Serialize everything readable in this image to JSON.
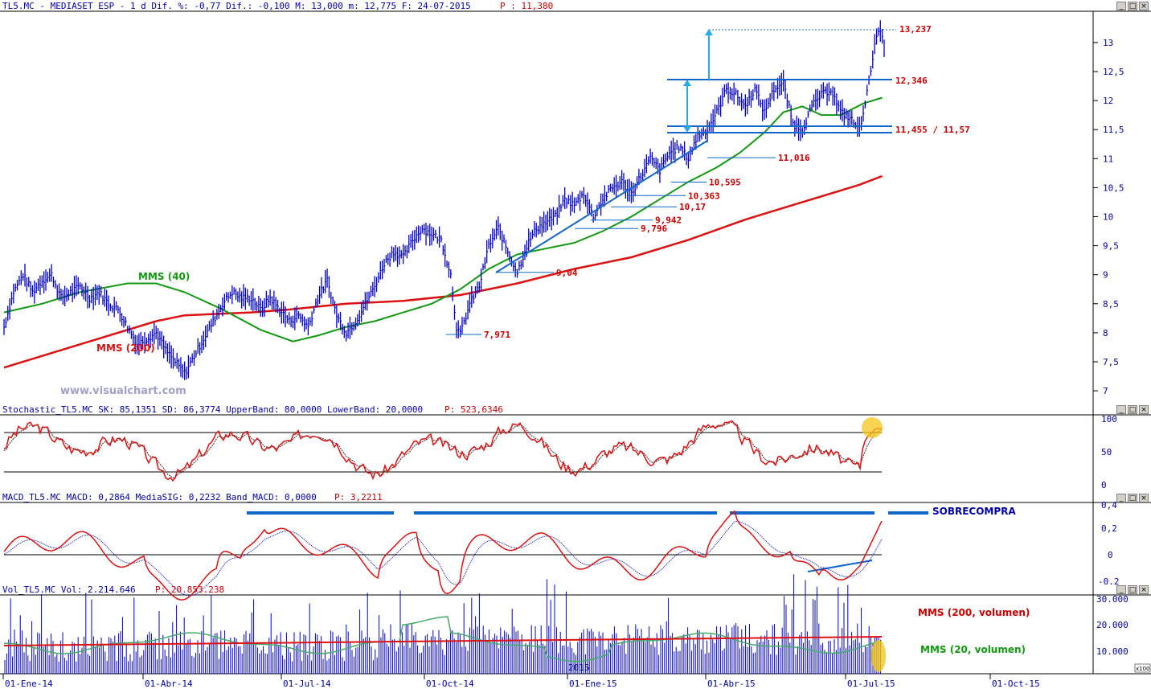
{
  "colors": {
    "price": "#0000cc",
    "ma40": "#119911",
    "ma200": "#dd1111",
    "text_blue": "#0000aa",
    "text_red": "#cc0000",
    "axis_blue": "#0000aa",
    "trend": "#1166cc"
  },
  "header": {
    "title": "TL5.MC - MEDIASET ESP -  1 d Dif. %: -0,77 Dif.: -0,100 M: 13,000 m: 12,775 F: 24-07-2015 ",
    "price_label": "P : 11,380"
  },
  "panels": {
    "stochastic": {
      "title": "Stochastic_TL5.MC SK: 85,1351 SD: 86,3774 UpperBand: 80,0000 LowerBand: 20,0000 ",
      "price_label": "P: 523,6346",
      "y_ticks": [
        "100",
        "50",
        "0"
      ],
      "upper_band": 80,
      "lower_band": 20
    },
    "macd": {
      "title": "MACD_TL5.MC MACD: 0,2864 MediaSIG: 0,2232 Band_MACD: 0,0000 ",
      "price_label": "P: 3,2211",
      "y_ticks": [
        "0,4",
        "0,2",
        "0",
        "-0.2"
      ],
      "annotation": "SOBRECOMPRA"
    },
    "volume": {
      "title": "Vol_TL5.MC Vol: 2.214.646 ",
      "price_label": "P: 20.853.238",
      "y_ticks": [
        "30.000",
        "20.000",
        "10.000"
      ],
      "unit": "x100",
      "ma200_label": "MMS (200, volumen)",
      "ma20_label": "MMS (20, volumen)",
      "year_label": "2015"
    }
  },
  "watermark": "www.visualchart.com",
  "chart_data": {
    "type": "line",
    "x_ticks": [
      "01-Ene-14",
      "01-Abr-14",
      "01-Jul-14",
      "01-Oct-14",
      "01-Ene-15",
      "01-Abr-15",
      "01-Jul-15",
      "01-Oct-15"
    ],
    "y_ticks": [
      "13",
      "12,5",
      "12",
      "11,5",
      "11",
      "10,5",
      "10",
      "9,5",
      "9",
      "8,5",
      "8",
      "7,5",
      "7"
    ],
    "ylim": [
      6.8,
      13.5
    ],
    "series": [
      {
        "name": "MMS (40)",
        "points": [
          [
            0,
            8.35
          ],
          [
            20,
            8.5
          ],
          [
            40,
            8.7
          ],
          [
            65,
            8.85
          ],
          [
            80,
            8.85
          ],
          [
            95,
            8.7
          ],
          [
            115,
            8.4
          ],
          [
            135,
            8.05
          ],
          [
            152,
            7.85
          ],
          [
            165,
            7.95
          ],
          [
            180,
            8.1
          ],
          [
            195,
            8.2
          ],
          [
            210,
            8.35
          ],
          [
            225,
            8.5
          ],
          [
            240,
            8.75
          ],
          [
            255,
            9.1
          ],
          [
            270,
            9.35
          ],
          [
            285,
            9.45
          ],
          [
            300,
            9.55
          ],
          [
            315,
            9.75
          ],
          [
            330,
            10.0
          ],
          [
            345,
            10.3
          ],
          [
            360,
            10.6
          ],
          [
            375,
            10.85
          ],
          [
            387,
            11.1
          ],
          [
            400,
            11.45
          ],
          [
            410,
            11.8
          ],
          [
            420,
            11.9
          ],
          [
            430,
            11.75
          ],
          [
            440,
            11.75
          ],
          [
            452,
            11.95
          ],
          [
            462,
            12.05
          ]
        ]
      },
      {
        "name": "MMS (200)",
        "points": [
          [
            0,
            7.4
          ],
          [
            40,
            7.8
          ],
          [
            80,
            8.2
          ],
          [
            95,
            8.3
          ],
          [
            130,
            8.35
          ],
          [
            150,
            8.4
          ],
          [
            165,
            8.45
          ],
          [
            180,
            8.5
          ],
          [
            210,
            8.55
          ],
          [
            240,
            8.65
          ],
          [
            270,
            8.85
          ],
          [
            300,
            9.1
          ],
          [
            330,
            9.3
          ],
          [
            360,
            9.6
          ],
          [
            390,
            9.95
          ],
          [
            420,
            10.25
          ],
          [
            450,
            10.55
          ],
          [
            462,
            10.7
          ]
        ]
      },
      {
        "name": "price",
        "points": [
          [
            0,
            8.1
          ],
          [
            5,
            8.7
          ],
          [
            10,
            9.0
          ],
          [
            15,
            8.7
          ],
          [
            20,
            8.9
          ],
          [
            25,
            9.0
          ],
          [
            30,
            8.6
          ],
          [
            40,
            8.8
          ],
          [
            45,
            8.6
          ],
          [
            50,
            8.7
          ],
          [
            55,
            8.5
          ],
          [
            60,
            8.4
          ],
          [
            65,
            8.1
          ],
          [
            70,
            7.8
          ],
          [
            75,
            7.9
          ],
          [
            80,
            8.0
          ],
          [
            85,
            7.7
          ],
          [
            90,
            7.5
          ],
          [
            95,
            7.3
          ],
          [
            100,
            7.6
          ],
          [
            105,
            7.9
          ],
          [
            110,
            8.2
          ],
          [
            115,
            8.5
          ],
          [
            120,
            8.7
          ],
          [
            125,
            8.6
          ],
          [
            130,
            8.6
          ],
          [
            135,
            8.4
          ],
          [
            140,
            8.6
          ],
          [
            145,
            8.4
          ],
          [
            150,
            8.2
          ],
          [
            155,
            8.3
          ],
          [
            160,
            8.1
          ],
          [
            165,
            8.6
          ],
          [
            170,
            8.9
          ],
          [
            175,
            8.3
          ],
          [
            180,
            8.0
          ],
          [
            185,
            8.2
          ],
          [
            190,
            8.5
          ],
          [
            195,
            8.8
          ],
          [
            200,
            9.2
          ],
          [
            205,
            9.4
          ],
          [
            210,
            9.3
          ],
          [
            215,
            9.6
          ],
          [
            220,
            9.8
          ],
          [
            225,
            9.7
          ],
          [
            230,
            9.6
          ],
          [
            235,
            9.0
          ],
          [
            238,
            8.1
          ],
          [
            240,
            7.97
          ],
          [
            245,
            8.5
          ],
          [
            250,
            8.8
          ],
          [
            255,
            9.5
          ],
          [
            260,
            9.8
          ],
          [
            265,
            9.4
          ],
          [
            270,
            9.04
          ],
          [
            275,
            9.5
          ],
          [
            280,
            9.8
          ],
          [
            285,
            9.9
          ],
          [
            290,
            10.0
          ],
          [
            295,
            10.3
          ],
          [
            300,
            10.2
          ],
          [
            305,
            10.4
          ],
          [
            310,
            10.0
          ],
          [
            315,
            10.3
          ],
          [
            320,
            10.5
          ],
          [
            325,
            10.6
          ],
          [
            330,
            10.4
          ],
          [
            335,
            10.7
          ],
          [
            340,
            11.0
          ],
          [
            345,
            10.8
          ],
          [
            350,
            11.1
          ],
          [
            355,
            11.2
          ],
          [
            360,
            11.0
          ],
          [
            365,
            11.4
          ],
          [
            370,
            11.5
          ],
          [
            375,
            11.8
          ],
          [
            380,
            12.2
          ],
          [
            385,
            12.1
          ],
          [
            390,
            11.9
          ],
          [
            395,
            12.2
          ],
          [
            400,
            11.8
          ],
          [
            405,
            12.2
          ],
          [
            410,
            12.3
          ],
          [
            415,
            11.6
          ],
          [
            420,
            11.5
          ],
          [
            425,
            11.9
          ],
          [
            430,
            12.1
          ],
          [
            435,
            12.2
          ],
          [
            440,
            11.8
          ],
          [
            445,
            11.7
          ],
          [
            450,
            11.5
          ],
          [
            455,
            12.3
          ],
          [
            458,
            13.0
          ],
          [
            461,
            13.2
          ],
          [
            463,
            12.9
          ]
        ]
      }
    ],
    "levels": [
      {
        "label": "13,237",
        "value": 13.237
      },
      {
        "label": "12,346",
        "value": 12.346
      },
      {
        "label": "11,455  / 11,57",
        "value": 11.5
      },
      {
        "label": "11,016",
        "value": 11.016
      },
      {
        "label": "10,595",
        "value": 10.595
      },
      {
        "label": "10,363",
        "value": 10.363
      },
      {
        "label": "10,17",
        "value": 10.17
      },
      {
        "label": "9,942",
        "value": 9.942
      },
      {
        "label": "9,796",
        "value": 9.796
      },
      {
        "label": "9,04",
        "value": 9.04
      },
      {
        "label": "7,971",
        "value": 7.971
      }
    ],
    "legend": {
      "ma40": "MMS (40)",
      "ma200": "MMS (200)"
    }
  }
}
